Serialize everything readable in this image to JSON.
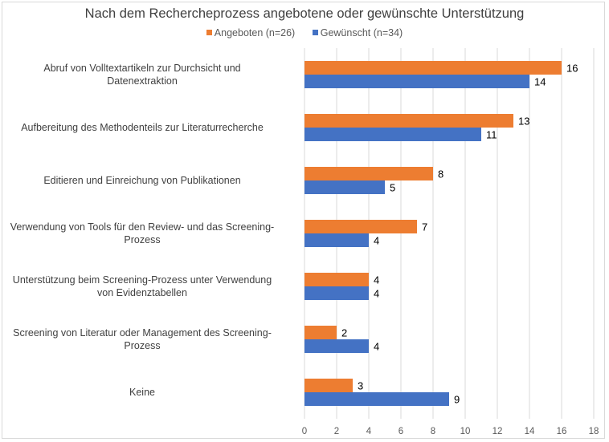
{
  "chart_data": {
    "type": "bar",
    "orientation": "horizontal",
    "title": "Nach dem Rechercheprozess angebotene oder gewünschte Unterstützung",
    "categories": [
      "Abruf von Volltextartikeln zur Durchsicht und Datenextraktion",
      "Aufbereitung des Methodenteils zur Literaturrecherche",
      "Editieren und Einreichung von Publikationen",
      "Verwendung von Tools für den Review- und das Screening-Prozess",
      "Unterstützung beim Screening-Prozess unter Verwendung von Evidenztabellen",
      "Screening von Literatur oder Management des Screening-Prozess",
      "Keine"
    ],
    "category_lines": [
      [
        "Abruf von Volltextartikeln zur Durchsicht und",
        "Datenextraktion"
      ],
      [
        "Aufbereitung des Methodenteils zur Literaturrecherche"
      ],
      [
        "Editieren und Einreichung von Publikationen"
      ],
      [
        "Verwendung von Tools für den Review- und das Screening-",
        "Prozess"
      ],
      [
        "Unterstützung beim Screening-Prozess unter Verwendung",
        "von Evidenztabellen"
      ],
      [
        "Screening von Literatur oder Management des Screening-",
        "Prozess"
      ],
      [
        "Keine"
      ]
    ],
    "series": [
      {
        "name": "Angeboten (n=26)",
        "color": "#ED7D31",
        "values": [
          16,
          13,
          8,
          7,
          4,
          2,
          3
        ]
      },
      {
        "name": "Gewünscht (n=34)",
        "color": "#4472C4",
        "values": [
          14,
          11,
          5,
          4,
          4,
          4,
          9
        ]
      }
    ],
    "xlabel": "",
    "ylabel": "",
    "xlim": [
      0,
      18
    ],
    "xticks": [
      "0",
      "2",
      "4",
      "6",
      "8",
      "10",
      "12",
      "14",
      "16",
      "18"
    ],
    "grid": true,
    "legend_position": "top",
    "data_labels": true
  }
}
